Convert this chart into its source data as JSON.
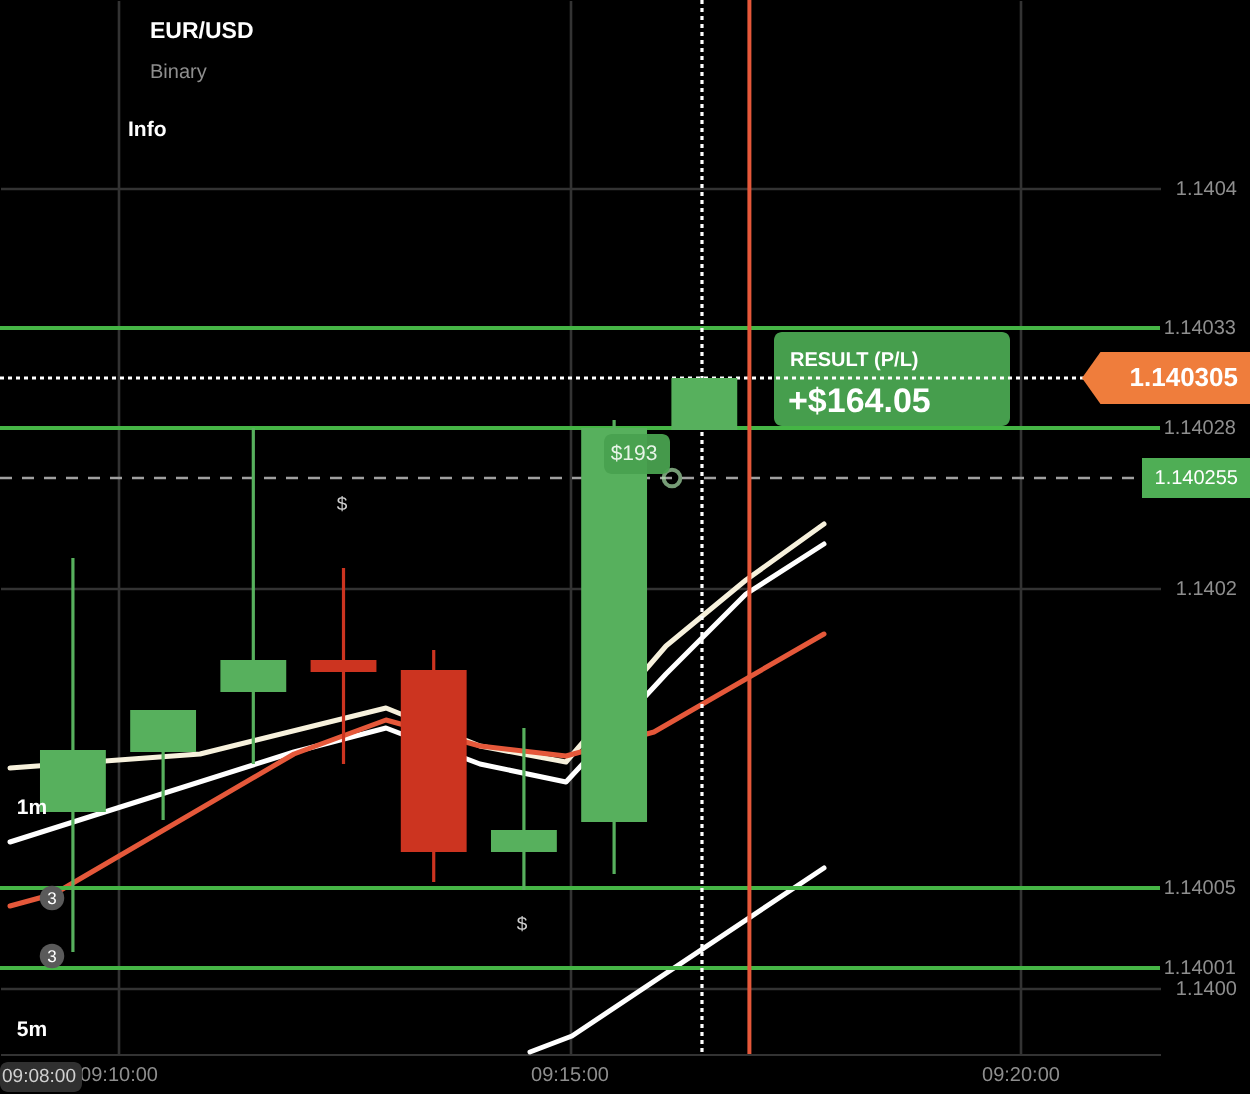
{
  "chart_data": {
    "type": "candlestick",
    "title": "EUR/USD",
    "subtitle": "Binary",
    "x": [
      9.158333,
      9.175,
      9.191667,
      9.208333,
      9.225,
      9.241667,
      9.258333,
      9.275
    ],
    "ohlc": [
      [
        1.140088,
        1.140215,
        1.140018,
        1.140119
      ],
      [
        1.140118,
        1.140139,
        1.140084,
        1.140139
      ],
      [
        1.140148,
        1.14028,
        1.140112,
        1.140164
      ],
      [
        1.140164,
        1.14021,
        1.140112,
        1.140158
      ],
      [
        1.140159,
        1.140169,
        1.140053,
        1.140068
      ],
      [
        1.140068,
        1.14013,
        1.140049,
        1.140079
      ],
      [
        1.140083,
        1.140284,
        1.140057,
        1.14028
      ],
      [
        1.140279,
        1.140305,
        1.140279,
        1.140305
      ]
    ],
    "colors": [
      "#57b05d",
      "#57b05d",
      "#57b05d",
      "#cc3420",
      "#cc3420",
      "#57b05d",
      "#57b05d",
      "#57b05d"
    ],
    "series": [
      {
        "type": "line",
        "color": "#f7f1dc",
        "x": [
          9.14671,
          9.18182,
          9.21618,
          9.23355,
          9.24944,
          9.26792,
          9.2827,
          9.29711
        ],
        "values": [
          1.14011,
          1.140117,
          1.14014,
          1.140121,
          1.140113,
          1.140171,
          1.140204,
          1.140232
        ]
      },
      {
        "type": "line",
        "color": "#ffffff",
        "x": [
          9.14671,
          9.19918,
          9.21618,
          9.23355,
          9.24944,
          9.26792,
          9.2827,
          9.29711
        ],
        "values": [
          1.140073,
          1.140118,
          1.14013,
          1.140112,
          1.140103,
          1.140157,
          1.140197,
          1.140222
        ]
      },
      {
        "type": "line",
        "color": "#e5583a",
        "x": [
          9.14671,
          9.15484,
          9.19918,
          9.21618,
          9.23355,
          9.24944,
          9.2657,
          9.29711
        ],
        "values": [
          1.140041,
          1.140047,
          1.140117,
          1.140134,
          1.140121,
          1.140116,
          1.140128,
          1.140177
        ]
      },
      {
        "type": "line",
        "color": "#ffffff",
        "x": [
          9.24279,
          9.25055,
          9.29711
        ],
        "values": [
          1.139968,
          1.139976,
          1.14006
        ]
      },
      {
        "type": "scatter",
        "color": "#a8dfa8",
        "marker": "circle",
        "x": [
          9.26903
        ],
        "values": [
          1.140255
        ]
      }
    ],
    "xlim": [
      9.14486,
      9.3592
    ],
    "xticks": [
      {
        "value": 9.166667,
        "label": "09:10:00"
      },
      {
        "value": 9.25,
        "label": "09:15:00"
      },
      {
        "value": 9.333333,
        "label": "09:20:00"
      }
    ],
    "ylim": [
      1.139967,
      1.140494
    ],
    "yticks": [
      {
        "value": 1.14,
        "label": "1.1400"
      },
      1.1402,
      1.1404
    ],
    "grid": true,
    "ref_lines": [
      {
        "axis": "y",
        "value": 1.14033,
        "label": "1.14033",
        "color": "#45b545"
      },
      {
        "axis": "y",
        "value": 1.14028,
        "label": "1.14028",
        "color": "#45b545"
      },
      {
        "axis": "y",
        "value": 1.14005,
        "label": "1.14005",
        "color": "#45b545"
      },
      {
        "axis": "y",
        "value": 1.14001,
        "label": "1.14001",
        "color": "#45b545"
      },
      {
        "axis": "y",
        "value": 1.140305,
        "label": "1.140305",
        "color": "#ffffff",
        "line_style": "dotted"
      },
      {
        "axis": "y",
        "value": 1.140255,
        "label": "1.140255",
        "color": "#a0a0a0",
        "line_style": "dashed"
      },
      {
        "axis": "x",
        "value": 9.27457,
        "color": "#ffffff",
        "line_style": "dotted"
      },
      {
        "axis": "x",
        "value": 9.28333,
        "color": "#e5583a"
      }
    ],
    "annotations": [
      "Info",
      "1m",
      "5m",
      "3",
      "3",
      "09:08:00",
      "RESULT (P/L)",
      "+$164.05",
      "$193",
      "$",
      "$"
    ]
  }
}
